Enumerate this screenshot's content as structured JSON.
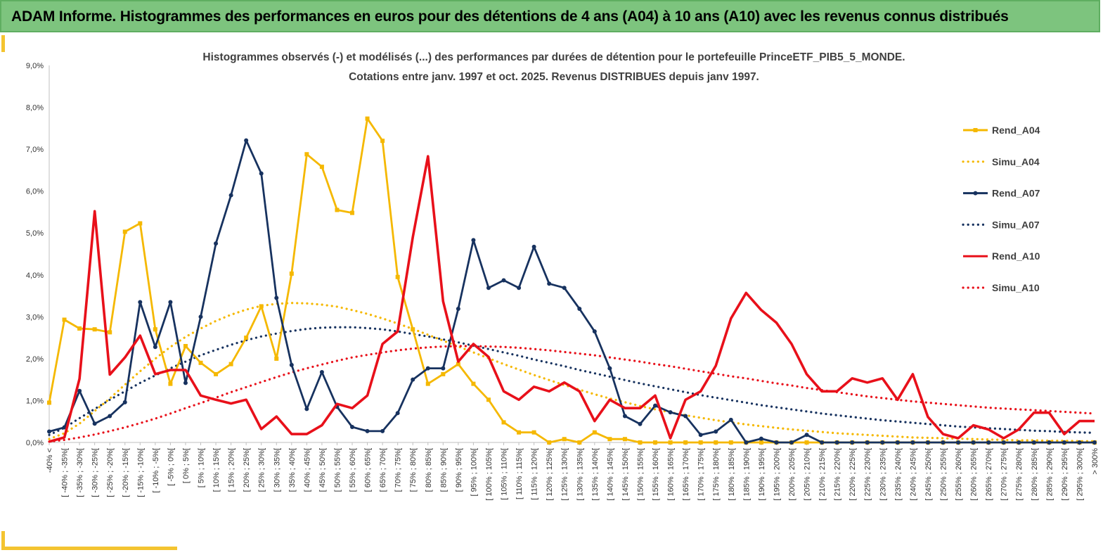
{
  "header": {
    "title": "ADAM Informe. Histogrammes des performances en euros pour des détentions de 4 ans (A04) à 10 ans (A10) avec les revenus connus distribués"
  },
  "chart_data": {
    "type": "line",
    "title": "Histogrammes observés (-) et modélisés (...) des performances par durées de détention pour le portefeuille PrinceETF_PIB5_5_MONDE.",
    "subtitle": "Cotations entre janv. 1997 et oct. 2025. Revenus DISTRIBUES depuis janv 1997.",
    "xlabel": "",
    "ylabel": "",
    "ylim": [
      0,
      9
    ],
    "yticks": [
      "0,0%",
      "1,0%",
      "2,0%",
      "3,0%",
      "4,0%",
      "5,0%",
      "6,0%",
      "7,0%",
      "8,0%",
      "9,0%"
    ],
    "grid": false,
    "legend_position": "right",
    "categories": [
      "-40% <",
      "[ -40% ; -35%[",
      "[ -35% ; -30%[",
      "[ -30% ; -25%[",
      "[ -25% ; -20%[",
      "[ -20% ; -15%[",
      "[ -15% ; -10%[",
      "[ -10% ; -5%[",
      "[ -5% ; 0%[",
      "[ 0% ; 5%[",
      "[ 5% ; 10%[",
      "[ 10% ; 15%[",
      "[ 15% ; 20%[",
      "[ 20% ; 25%[",
      "[ 25% ; 30%[",
      "[ 30% ; 35%[",
      "[ 35% ; 40%[",
      "[ 40% ; 45%[",
      "[ 45% ; 50%[",
      "[ 50% ; 55%[",
      "[ 55% ; 60%[",
      "[ 60% ; 65%[",
      "[ 65% ; 70%[",
      "[ 70% ; 75%[",
      "[ 75% ; 80%[",
      "[ 80% ; 85%[",
      "[ 85% ; 90%[",
      "[ 90% ; 95%[",
      "[ 95% ; 100%[",
      "[ 100% ; 105%[",
      "[ 105% ; 110%[",
      "[ 110% ; 115%[",
      "[ 115% ; 120%[",
      "[ 120% ; 125%[",
      "[ 125% ; 130%[",
      "[ 130% ; 135%[",
      "[ 135% ; 140%[",
      "[ 140% ; 145%[",
      "[ 145% ; 150%[",
      "[ 150% ; 155%[",
      "[ 155% ; 160%[",
      "[ 160% ; 165%[",
      "[ 165% ; 170%[",
      "[ 170% ; 175%[",
      "[ 175% ; 180%[",
      "[ 180% ; 185%[",
      "[ 185% ; 190%[",
      "[ 190% ; 195%[",
      "[ 195% ; 200%[",
      "[ 200% ; 205%[",
      "[ 205% ; 210%[",
      "[ 210% ; 215%[",
      "[ 215% ; 220%[",
      "[ 220% ; 225%[",
      "[ 225% ; 230%[",
      "[ 230% ; 235%[",
      "[ 235% ; 240%[",
      "[ 240% ; 245%[",
      "[ 245% ; 250%[",
      "[ 250% ; 255%[",
      "[ 255% ; 260%[",
      "[ 260% ; 265%[",
      "[ 265% ; 270%[",
      "[ 270% ; 275%[",
      "[ 275% ; 280%[",
      "[ 280% ; 285%[",
      "[ 285% ; 290%[",
      "[ 290% ; 295%[",
      "[ 295% ; 300%[",
      "> 300%"
    ],
    "series": [
      {
        "name": "Rend_A04",
        "style": "solid",
        "marker": "square",
        "color": "#f5b800",
        "values": [
          0.95,
          2.93,
          2.72,
          2.7,
          2.63,
          5.03,
          5.23,
          2.7,
          1.4,
          2.3,
          1.9,
          1.63,
          1.87,
          2.5,
          3.25,
          2.0,
          4.03,
          6.88,
          6.58,
          5.55,
          5.48,
          7.73,
          7.2,
          3.95,
          2.7,
          1.4,
          1.63,
          1.87,
          1.4,
          1.02,
          0.48,
          0.24,
          0.24,
          0.0,
          0.08,
          0.0,
          0.24,
          0.08,
          0.08,
          0.0,
          0.0,
          0.0,
          0.0,
          0.0,
          0.0,
          0.0,
          0.0,
          0.0,
          0.0,
          0.0,
          0.0,
          0.0,
          0.0,
          0.0,
          0.0,
          0.0,
          0.0,
          0.0,
          0.0,
          0.0,
          0.0,
          0.0,
          0.0,
          0.0,
          0.0,
          0.0,
          0.0,
          0.0,
          0.0,
          0.0
        ]
      },
      {
        "name": "Simu_A04",
        "style": "dotted",
        "color": "#f5b800",
        "values": [
          0.08,
          0.22,
          0.45,
          0.75,
          1.05,
          1.38,
          1.7,
          2.0,
          2.28,
          2.52,
          2.72,
          2.9,
          3.05,
          3.17,
          3.26,
          3.31,
          3.33,
          3.32,
          3.29,
          3.24,
          3.16,
          3.07,
          2.96,
          2.84,
          2.71,
          2.57,
          2.43,
          2.29,
          2.15,
          2.01,
          1.87,
          1.74,
          1.61,
          1.49,
          1.37,
          1.26,
          1.15,
          1.05,
          0.96,
          0.87,
          0.79,
          0.72,
          0.65,
          0.59,
          0.53,
          0.48,
          0.43,
          0.39,
          0.35,
          0.31,
          0.28,
          0.25,
          0.22,
          0.2,
          0.18,
          0.16,
          0.14,
          0.12,
          0.11,
          0.1,
          0.09,
          0.08,
          0.07,
          0.06,
          0.05,
          0.05,
          0.04,
          0.04,
          0.03,
          0.03
        ]
      },
      {
        "name": "Rend_A07",
        "style": "solid",
        "marker": "circle",
        "color": "#17325f",
        "values": [
          0.26,
          0.36,
          1.23,
          0.45,
          0.63,
          0.96,
          3.35,
          2.28,
          3.35,
          1.42,
          3.0,
          4.75,
          5.9,
          7.21,
          6.42,
          3.45,
          1.85,
          0.8,
          1.68,
          0.85,
          0.37,
          0.27,
          0.27,
          0.7,
          1.5,
          1.77,
          1.77,
          3.19,
          4.83,
          3.69,
          3.87,
          3.69,
          4.67,
          3.79,
          3.69,
          3.19,
          2.65,
          1.77,
          0.63,
          0.44,
          0.88,
          0.72,
          0.63,
          0.18,
          0.26,
          0.54,
          0.0,
          0.09,
          0.0,
          0.0,
          0.18,
          0.0,
          0.0,
          0.0,
          0.0,
          0.0,
          0.0,
          0.0,
          0.0,
          0.0,
          0.0,
          0.0,
          0.0,
          0.0,
          0.0,
          0.0,
          0.0,
          0.0,
          0.0,
          0.0
        ]
      },
      {
        "name": "Simu_A07",
        "style": "dotted",
        "color": "#17325f",
        "values": [
          0.18,
          0.35,
          0.58,
          0.8,
          1.02,
          1.22,
          1.42,
          1.6,
          1.77,
          1.93,
          2.08,
          2.21,
          2.33,
          2.44,
          2.53,
          2.6,
          2.66,
          2.71,
          2.74,
          2.75,
          2.75,
          2.73,
          2.7,
          2.65,
          2.59,
          2.53,
          2.46,
          2.39,
          2.31,
          2.23,
          2.15,
          2.07,
          1.98,
          1.9,
          1.82,
          1.73,
          1.65,
          1.57,
          1.49,
          1.41,
          1.34,
          1.27,
          1.2,
          1.13,
          1.07,
          1.01,
          0.95,
          0.89,
          0.84,
          0.79,
          0.74,
          0.69,
          0.65,
          0.61,
          0.57,
          0.53,
          0.5,
          0.47,
          0.44,
          0.41,
          0.38,
          0.36,
          0.34,
          0.32,
          0.3,
          0.28,
          0.27,
          0.25,
          0.24,
          0.23
        ]
      },
      {
        "name": "Rend_A10",
        "style": "solid",
        "marker": "none",
        "color": "#e8101a",
        "values": [
          0.02,
          0.12,
          1.52,
          5.52,
          1.62,
          2.03,
          2.55,
          1.63,
          1.73,
          1.73,
          1.12,
          1.02,
          0.93,
          1.02,
          0.32,
          0.62,
          0.2,
          0.2,
          0.41,
          0.92,
          0.82,
          1.12,
          2.35,
          2.65,
          4.9,
          6.83,
          3.37,
          1.93,
          2.35,
          2.04,
          1.22,
          1.02,
          1.33,
          1.22,
          1.43,
          1.22,
          0.51,
          1.02,
          0.82,
          0.82,
          1.12,
          0.1,
          1.02,
          1.22,
          1.83,
          2.96,
          3.57,
          3.16,
          2.86,
          2.35,
          1.63,
          1.22,
          1.22,
          1.53,
          1.43,
          1.53,
          1.02,
          1.63,
          0.61,
          0.2,
          0.1,
          0.41,
          0.31,
          0.1,
          0.31,
          0.71,
          0.71,
          0.2,
          0.51,
          0.51
        ]
      },
      {
        "name": "Simu_A10",
        "style": "dotted",
        "color": "#e8101a",
        "values": [
          0.02,
          0.06,
          0.12,
          0.19,
          0.27,
          0.36,
          0.46,
          0.57,
          0.69,
          0.82,
          0.94,
          1.07,
          1.2,
          1.32,
          1.44,
          1.56,
          1.67,
          1.77,
          1.86,
          1.95,
          2.03,
          2.09,
          2.15,
          2.2,
          2.24,
          2.27,
          2.29,
          2.3,
          2.3,
          2.29,
          2.28,
          2.26,
          2.23,
          2.2,
          2.16,
          2.12,
          2.08,
          2.03,
          1.98,
          1.93,
          1.87,
          1.82,
          1.76,
          1.7,
          1.64,
          1.58,
          1.53,
          1.47,
          1.41,
          1.36,
          1.3,
          1.25,
          1.2,
          1.15,
          1.1,
          1.06,
          1.02,
          0.98,
          0.95,
          0.92,
          0.89,
          0.86,
          0.83,
          0.81,
          0.79,
          0.77,
          0.75,
          0.73,
          0.71,
          0.69
        ]
      }
    ]
  }
}
